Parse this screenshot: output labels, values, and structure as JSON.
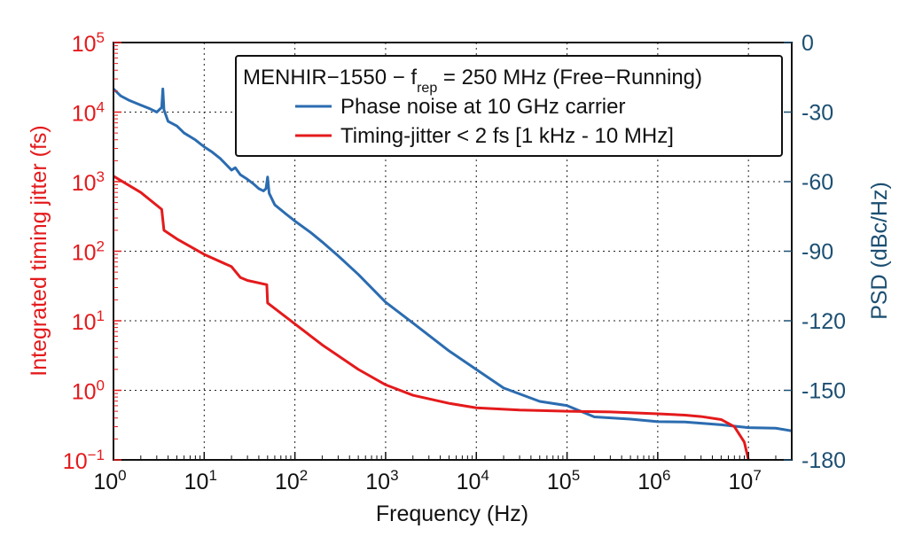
{
  "chart_data": {
    "type": "line",
    "title": "",
    "xlabel": "Frequency (Hz)",
    "ylabel_left": "Integrated timing jitter (fs)",
    "ylabel_right": "PSD (dBc/Hz)",
    "x_scale": "log",
    "xlim": [
      1,
      30000000
    ],
    "x_ticks": [
      {
        "value": 1,
        "base": "10",
        "exp": "0"
      },
      {
        "value": 10,
        "base": "10",
        "exp": "1"
      },
      {
        "value": 100,
        "base": "10",
        "exp": "2"
      },
      {
        "value": 1000,
        "base": "10",
        "exp": "3"
      },
      {
        "value": 10000,
        "base": "10",
        "exp": "4"
      },
      {
        "value": 100000,
        "base": "10",
        "exp": "5"
      },
      {
        "value": 1000000,
        "base": "10",
        "exp": "6"
      },
      {
        "value": 10000000,
        "base": "10",
        "exp": "7"
      }
    ],
    "y_left_scale": "log",
    "y_left_lim": [
      0.1,
      100000
    ],
    "y_left_ticks": [
      {
        "value": 0.1,
        "base": "10",
        "exp": "−1"
      },
      {
        "value": 1,
        "base": "10",
        "exp": "0"
      },
      {
        "value": 10,
        "base": "10",
        "exp": "1"
      },
      {
        "value": 100,
        "base": "10",
        "exp": "2"
      },
      {
        "value": 1000,
        "base": "10",
        "exp": "3"
      },
      {
        "value": 10000,
        "base": "10",
        "exp": "4"
      },
      {
        "value": 100000,
        "base": "10",
        "exp": "5"
      }
    ],
    "y_right_lim": [
      -180,
      0
    ],
    "y_right_ticks": [
      "-180",
      "-150",
      "-120",
      "-90",
      "-60",
      "-30",
      "0"
    ],
    "grid": true,
    "legend": {
      "placement": "top-right",
      "title_main": "MENHIR−1550 − f",
      "title_sub": "rep",
      "title_rest": " = 250 MHz (Free−Running)"
    },
    "series": [
      {
        "name": "Phase noise at 10 GHz carrier",
        "axis": "right",
        "color": "#2b6cb0",
        "points": [
          [
            1,
            -20
          ],
          [
            1.2,
            -23
          ],
          [
            1.5,
            -25
          ],
          [
            2,
            -27
          ],
          [
            2.5,
            -28.5
          ],
          [
            3,
            -30
          ],
          [
            3.4,
            -28
          ],
          [
            3.5,
            -20
          ],
          [
            3.6,
            -29
          ],
          [
            4,
            -34
          ],
          [
            5,
            -36
          ],
          [
            6,
            -39
          ],
          [
            8,
            -42
          ],
          [
            10,
            -45
          ],
          [
            12,
            -47
          ],
          [
            15,
            -50
          ],
          [
            20,
            -55
          ],
          [
            22,
            -54
          ],
          [
            25,
            -57
          ],
          [
            30,
            -59
          ],
          [
            35,
            -61
          ],
          [
            40,
            -63
          ],
          [
            45,
            -64
          ],
          [
            48,
            -63
          ],
          [
            50,
            -58
          ],
          [
            52,
            -65
          ],
          [
            60,
            -70
          ],
          [
            80,
            -74
          ],
          [
            100,
            -77
          ],
          [
            150,
            -82
          ],
          [
            200,
            -86
          ],
          [
            300,
            -92
          ],
          [
            500,
            -100
          ],
          [
            1000,
            -112
          ],
          [
            2000,
            -121
          ],
          [
            5000,
            -133
          ],
          [
            10000,
            -141
          ],
          [
            20000,
            -149
          ],
          [
            50000,
            -155
          ],
          [
            100000,
            -157
          ],
          [
            200000,
            -162
          ],
          [
            500000,
            -163
          ],
          [
            1000000,
            -164
          ],
          [
            2000000,
            -164
          ],
          [
            5000000,
            -165
          ],
          [
            10000000,
            -166
          ],
          [
            20000000,
            -166
          ],
          [
            30000000,
            -167
          ]
        ]
      },
      {
        "name": "Timing-jitter < 2 fs [1 kHz - 10 MHz]",
        "axis": "left",
        "color": "#e41a1c",
        "points": [
          [
            1,
            1200
          ],
          [
            2,
            700
          ],
          [
            3.4,
            400
          ],
          [
            3.6,
            200
          ],
          [
            5,
            150
          ],
          [
            10,
            90
          ],
          [
            20,
            60
          ],
          [
            25,
            42
          ],
          [
            30,
            38
          ],
          [
            40,
            35
          ],
          [
            49,
            33
          ],
          [
            50,
            18
          ],
          [
            100,
            9
          ],
          [
            200,
            4.5
          ],
          [
            500,
            2
          ],
          [
            1000,
            1.2
          ],
          [
            2000,
            0.85
          ],
          [
            5000,
            0.65
          ],
          [
            10000,
            0.56
          ],
          [
            30000,
            0.52
          ],
          [
            100000,
            0.5
          ],
          [
            300000,
            0.49
          ],
          [
            1000000,
            0.46
          ],
          [
            2000000,
            0.44
          ],
          [
            3000000,
            0.42
          ],
          [
            5000000,
            0.38
          ],
          [
            7000000,
            0.3
          ],
          [
            9000000,
            0.18
          ],
          [
            10000000,
            0.1
          ]
        ]
      }
    ]
  }
}
